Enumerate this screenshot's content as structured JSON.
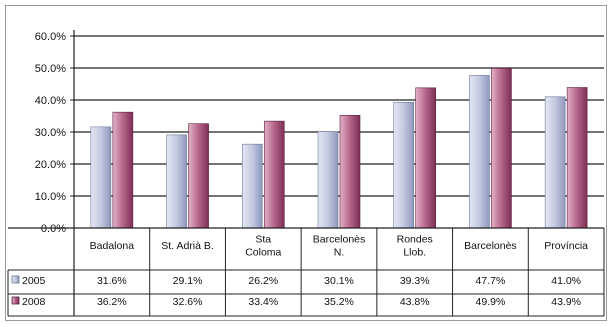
{
  "chart_data": {
    "type": "bar",
    "categories": [
      [
        "Badalona"
      ],
      [
        "St. Adrià B."
      ],
      [
        "Sta",
        "Coloma"
      ],
      [
        "Barcelonès",
        "N."
      ],
      [
        "Rondes",
        "Llob."
      ],
      [
        "Barcelonès"
      ],
      [
        "Província"
      ]
    ],
    "series": [
      {
        "name": "2005",
        "color": "#b9c0da",
        "values": [
          31.6,
          29.1,
          26.2,
          30.1,
          39.3,
          47.7,
          41.0
        ],
        "labels": [
          "31.6%",
          "29.1%",
          "26.2%",
          "30.1%",
          "39.3%",
          "47.7%",
          "41.0%"
        ]
      },
      {
        "name": "2008",
        "color": "#b0577e",
        "values": [
          36.2,
          32.6,
          33.4,
          35.2,
          43.8,
          49.9,
          43.9
        ],
        "labels": [
          "36.2%",
          "32.6%",
          "33.4%",
          "35.2%",
          "43.8%",
          "49.9%",
          "43.9%"
        ]
      }
    ],
    "ylim": [
      0,
      60
    ],
    "yticks": [
      "0.0%",
      "10.0%",
      "20.0%",
      "30.0%",
      "40.0%",
      "50.0%",
      "60.0%"
    ],
    "grid": true,
    "legend": "data-table-left"
  }
}
